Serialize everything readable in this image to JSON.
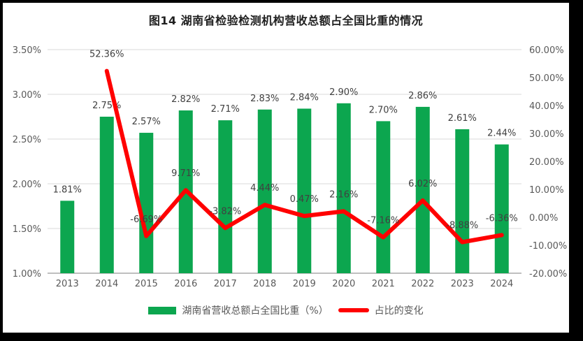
{
  "chart_data": {
    "type": "bar+line combo",
    "title": "图14 湖南省检验检测机构营收总额占全国比重的情况",
    "categories": [
      "2013",
      "2014",
      "2015",
      "2016",
      "2017",
      "2018",
      "2019",
      "2020",
      "2021",
      "2022",
      "2023",
      "2024"
    ],
    "series": [
      {
        "name": "湖南省营收总额占全国比重（%）",
        "type": "bar",
        "axis": "left",
        "values": [
          1.81,
          2.75,
          2.57,
          2.82,
          2.71,
          2.83,
          2.84,
          2.9,
          2.7,
          2.86,
          2.61,
          2.44
        ],
        "labels": [
          "1.81%",
          "2.75%",
          "2.57%",
          "2.82%",
          "2.71%",
          "2.83%",
          "2.84%",
          "2.90%",
          "2.70%",
          "2.86%",
          "2.61%",
          "2.44%"
        ]
      },
      {
        "name": "占比的变化",
        "type": "line",
        "axis": "right",
        "values": [
          null,
          52.36,
          -6.69,
          9.71,
          -3.82,
          4.44,
          0.47,
          2.16,
          -7.16,
          6.02,
          -8.88,
          -6.36
        ],
        "labels": [
          "",
          "52.36%",
          "-6.69%",
          "9.71%",
          "-3.82%",
          "4.44%",
          "0.47%",
          "2.16%",
          "-7.16%",
          "6.02%",
          "-8.88%",
          "-6.36%"
        ]
      }
    ],
    "left_axis": {
      "min": 1.0,
      "max": 3.5,
      "ticks": [
        "3.50%",
        "3.00%",
        "2.50%",
        "2.00%",
        "1.50%",
        "1.00%"
      ]
    },
    "right_axis": {
      "min": -20,
      "max": 60,
      "ticks": [
        "60.00%",
        "50.00%",
        "40.00%",
        "30.00%",
        "20.00%",
        "10.00%",
        "0.00%",
        "-10.00%",
        "-20.00%"
      ]
    },
    "grid": "horizontal",
    "legend_position": "bottom"
  },
  "legend": [
    {
      "label": "湖南省营收总额占全国比重（%）"
    },
    {
      "label": "占比的变化"
    }
  ],
  "colors": {
    "bar": "#0CA64F",
    "line": "#FF0000",
    "grid": "#D9D9D9",
    "axis_line": "#BFBFBF",
    "tick_text": "#595959",
    "label_text": "#404040"
  }
}
